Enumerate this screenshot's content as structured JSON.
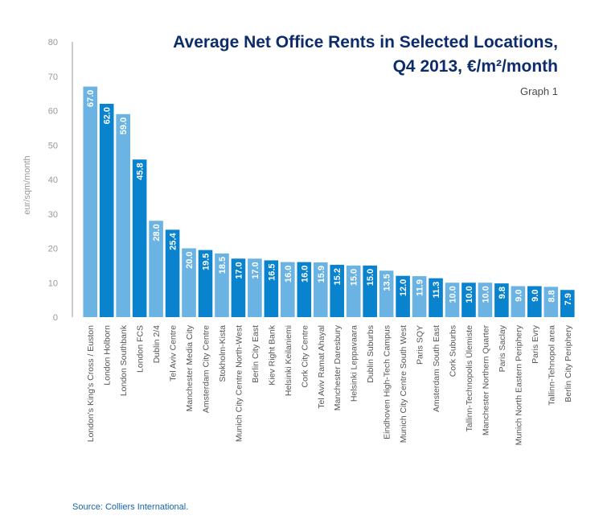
{
  "chart_data": {
    "type": "bar",
    "title": "Average Net Office Rents in Selected Locations,",
    "subtitle": "Q4 2013, €/m²/month",
    "graph_label": "Graph 1",
    "source": "Source: Colliers International.",
    "ylabel": "eur/sqm/month",
    "xlabel": "",
    "ylim": [
      0,
      80
    ],
    "yticks": [
      0,
      10,
      20,
      30,
      40,
      50,
      60,
      70,
      80
    ],
    "grid": false,
    "categories": [
      "London's King's Cross / Euston",
      "London Holborn",
      "London Southbank",
      "London FCS",
      "Dublin 2/4",
      "Tel Aviv Centre",
      "Manchester Media City",
      "Amsterdam City Centre",
      "Stokholm-Kista",
      "Munich City Centre North-West",
      "Berlin City East",
      "Kiev Right Bank",
      "Helsinki Keilaniemi",
      "Cork City Centre",
      "Tel Aviv Ramat Ahayal",
      "Manchester Daresbury",
      "Helsinki Leppavaara",
      "Dublin Suburbs",
      "Eindhoven High-Tech Campus",
      "Munich City Centre South West",
      "Paris SQY",
      "Amsterdam South East",
      "Cork Suburbs",
      "Tallinn-Technopolis Ülemiste",
      "Manchester Northern Quarter",
      "Paris Saclay",
      "Munich North Eastern Periphery",
      "Paris Evry",
      "Tallinn-Tehnopol area",
      "Berlin City Periphery"
    ],
    "values": [
      67.0,
      62.0,
      59.0,
      45.8,
      28.0,
      25.4,
      20.0,
      19.5,
      18.5,
      17.0,
      17.0,
      16.5,
      16.0,
      16.0,
      15.9,
      15.2,
      15.0,
      15.0,
      13.5,
      12.0,
      11.9,
      11.3,
      10.0,
      10.0,
      10.0,
      9.8,
      9.0,
      9.0,
      8.8,
      7.9
    ],
    "value_labels": [
      "67.0",
      "62.0",
      "59.0",
      "45.8",
      "28.0",
      "25.4",
      "20.0",
      "19.5",
      "18.5",
      "17.0",
      "17.0",
      "16.5",
      "16.0",
      "16.0",
      "15.9",
      "15.2",
      "15.0",
      "15.0",
      "13.5",
      "12.0",
      "11.9",
      "11.3",
      "10.0",
      "10.0",
      "10.0",
      "9.8",
      "9.0",
      "9.0",
      "8.8",
      "7.9"
    ],
    "colors": {
      "light": "#6ab3e3",
      "dark": "#0a83cf",
      "axis": "#999999",
      "tick_text": "#999999",
      "category_text": "#555555",
      "value_text": "#ffffff"
    }
  }
}
